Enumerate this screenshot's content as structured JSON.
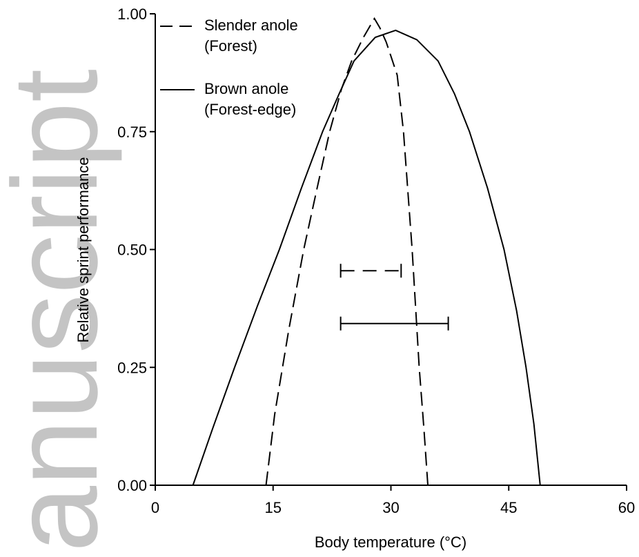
{
  "watermark": "anuscript",
  "chart_data": {
    "type": "line",
    "xlabel": "Body temperature (°C)",
    "ylabel": "Relative sprint performance",
    "xlim": [
      0,
      60
    ],
    "xticks": [
      0,
      15,
      30,
      45,
      60
    ],
    "ylim": [
      0,
      1
    ],
    "yticks": [
      {
        "value": 0,
        "label": "0.00"
      },
      0.25,
      {
        "value": 0.5,
        "label": "0.50"
      },
      0.75,
      {
        "value": 1,
        "label": "1.00"
      }
    ],
    "legend": "upper left",
    "series": [
      {
        "name": "Slender anole\n(Forest)",
        "color": "#000000",
        "dash": true,
        "x": [
          14.1,
          15.2,
          17.0,
          18.9,
          20.6,
          22.2,
          23.7,
          25.0,
          26.5,
          27.9,
          28.6,
          29.4,
          30.8,
          31.6,
          32.7,
          33.6,
          34.2,
          34.7
        ],
        "values": [
          0,
          0.15,
          0.33,
          0.5,
          0.63,
          0.75,
          0.84,
          0.9,
          0.95,
          0.99,
          0.97,
          0.94,
          0.87,
          0.75,
          0.5,
          0.25,
          0.12,
          0
        ],
        "range": {
          "y": 0.455,
          "low": 23.6,
          "high": 31.3
        }
      },
      {
        "name": "Brown anole\n(Forest-edge)",
        "color": "#000000",
        "dash": false,
        "x": [
          4.8,
          7.3,
          10.1,
          13.0,
          15.8,
          18.6,
          21.3,
          23.4,
          25.3,
          28.0,
          30.6,
          33.3,
          36.0,
          38.1,
          40.0,
          42.3,
          44.4,
          46.0,
          47.2,
          48.2,
          49.0
        ],
        "values": [
          0,
          0.12,
          0.25,
          0.38,
          0.5,
          0.63,
          0.75,
          0.83,
          0.9,
          0.95,
          0.965,
          0.945,
          0.9,
          0.83,
          0.75,
          0.63,
          0.5,
          0.37,
          0.25,
          0.13,
          0
        ],
        "range": {
          "y": 0.343,
          "low": 23.6,
          "high": 37.3
        }
      }
    ]
  }
}
